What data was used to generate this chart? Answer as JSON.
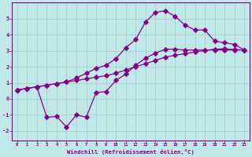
{
  "xlabel": "Windchill (Refroidissement éolien,°C)",
  "bg_color": "#c0e8e8",
  "line_color": "#880088",
  "grid_color": "#aad4d4",
  "ylim": [
    -2.6,
    6.0
  ],
  "xlim": [
    -0.5,
    23.5
  ],
  "yticks": [
    -2,
    -1,
    0,
    1,
    2,
    3,
    4,
    5
  ],
  "xticks": [
    0,
    1,
    2,
    3,
    4,
    5,
    6,
    7,
    8,
    9,
    10,
    11,
    12,
    13,
    14,
    15,
    16,
    17,
    18,
    19,
    20,
    21,
    22,
    23
  ],
  "line1_x": [
    0,
    1,
    2,
    3,
    4,
    5,
    6,
    7,
    8,
    9,
    10,
    11,
    12,
    13,
    14,
    15,
    16,
    17,
    18,
    19,
    20,
    21,
    22,
    23
  ],
  "line1_y": [
    0.55,
    0.65,
    0.75,
    0.85,
    0.95,
    1.05,
    1.15,
    1.25,
    1.35,
    1.45,
    1.6,
    1.8,
    2.0,
    2.2,
    2.4,
    2.6,
    2.72,
    2.82,
    2.92,
    3.02,
    3.1,
    3.12,
    3.08,
    3.05
  ],
  "line2_x": [
    0,
    1,
    2,
    3,
    4,
    5,
    6,
    7,
    8,
    9,
    10,
    11,
    12,
    13,
    14,
    15,
    16,
    17,
    18,
    19,
    20,
    21,
    22,
    23
  ],
  "line2_y": [
    0.55,
    0.65,
    0.75,
    0.85,
    0.95,
    1.05,
    1.3,
    1.6,
    1.9,
    2.1,
    2.5,
    3.2,
    3.7,
    4.8,
    5.4,
    5.5,
    5.15,
    4.6,
    4.3,
    4.3,
    3.6,
    3.5,
    3.4,
    3.05
  ],
  "line3_x": [
    0,
    1,
    2,
    3,
    4,
    5,
    6,
    7,
    8,
    9,
    10,
    11,
    12,
    13,
    14,
    15,
    16,
    17,
    18,
    19,
    20,
    21,
    22,
    23
  ],
  "line3_y": [
    0.55,
    0.65,
    0.75,
    -1.15,
    -1.1,
    -1.75,
    -1.0,
    -1.15,
    0.4,
    0.45,
    1.15,
    1.55,
    2.1,
    2.55,
    2.85,
    3.1,
    3.1,
    3.05,
    3.05,
    3.05,
    3.05,
    3.05,
    3.05,
    3.05
  ]
}
